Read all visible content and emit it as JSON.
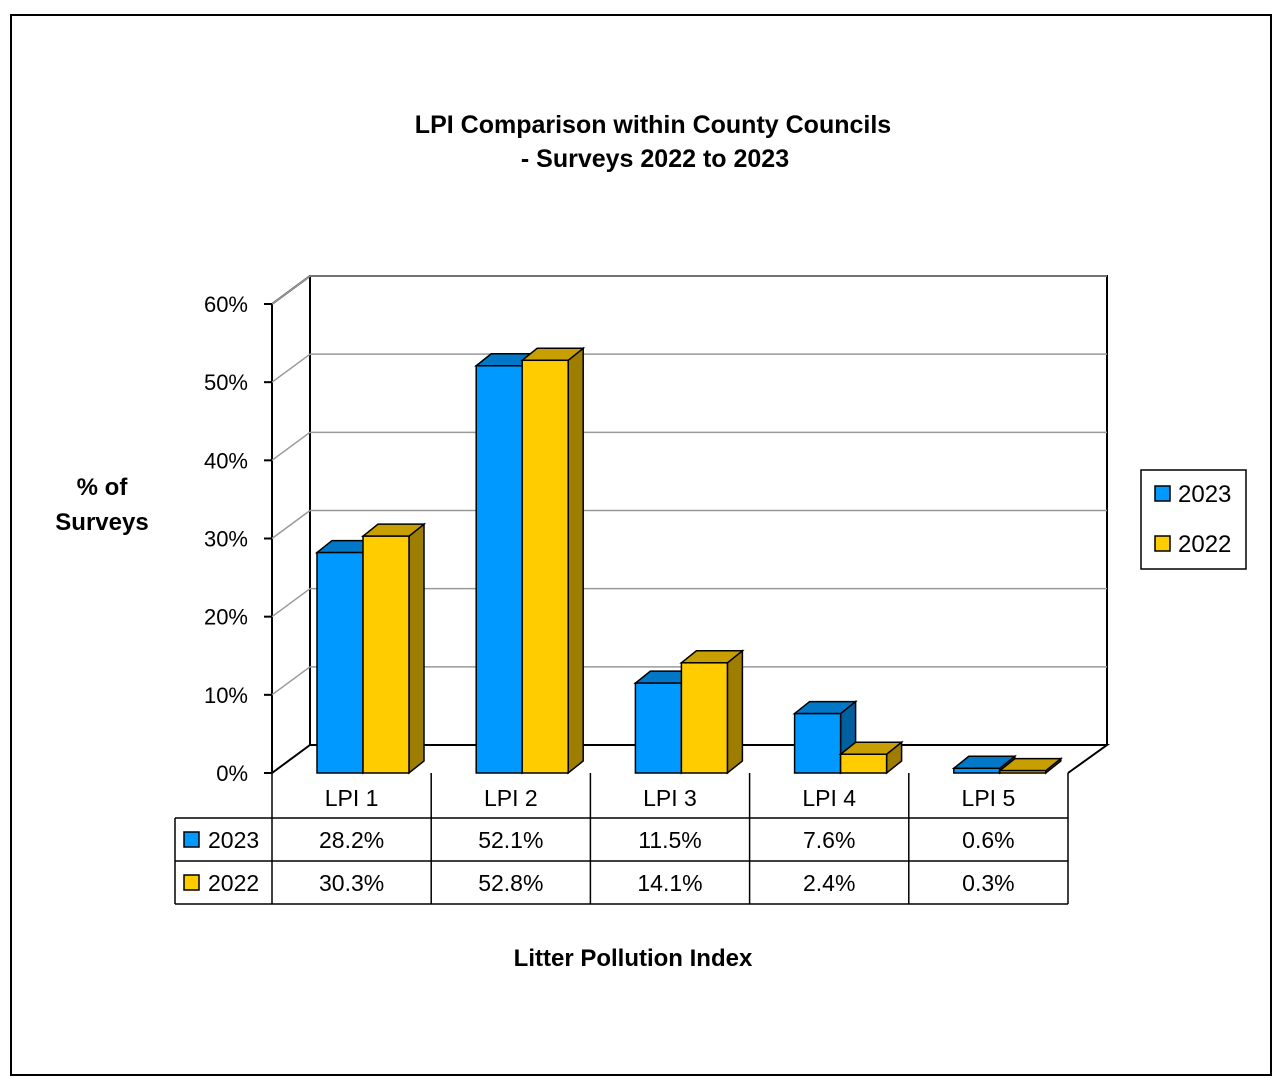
{
  "chart_data": {
    "type": "bar",
    "title_lines": [
      "LPI Comparison within County Councils",
      "- Surveys 2022 to 2023"
    ],
    "ylabel_lines": [
      "% of",
      "Surveys"
    ],
    "xlabel": "Litter Pollution Index",
    "categories": [
      "LPI 1",
      "LPI 2",
      "LPI 3",
      "LPI 4",
      "LPI 5"
    ],
    "y_ticks": [
      "0%",
      "10%",
      "20%",
      "30%",
      "40%",
      "50%",
      "60%"
    ],
    "ylim": [
      0,
      60
    ],
    "grid": true,
    "legend_position": "right",
    "series": [
      {
        "name": "2023",
        "values": [
          28.2,
          52.1,
          11.5,
          7.6,
          0.6
        ],
        "labels": [
          "28.2%",
          "52.1%",
          "11.5%",
          "7.6%",
          "0.6%"
        ],
        "color": "#0099FF"
      },
      {
        "name": "2022",
        "values": [
          30.3,
          52.8,
          14.1,
          2.4,
          0.3
        ],
        "labels": [
          "30.3%",
          "52.8%",
          "14.1%",
          "2.4%",
          "0.3%"
        ],
        "color": "#FFCC00"
      }
    ]
  }
}
